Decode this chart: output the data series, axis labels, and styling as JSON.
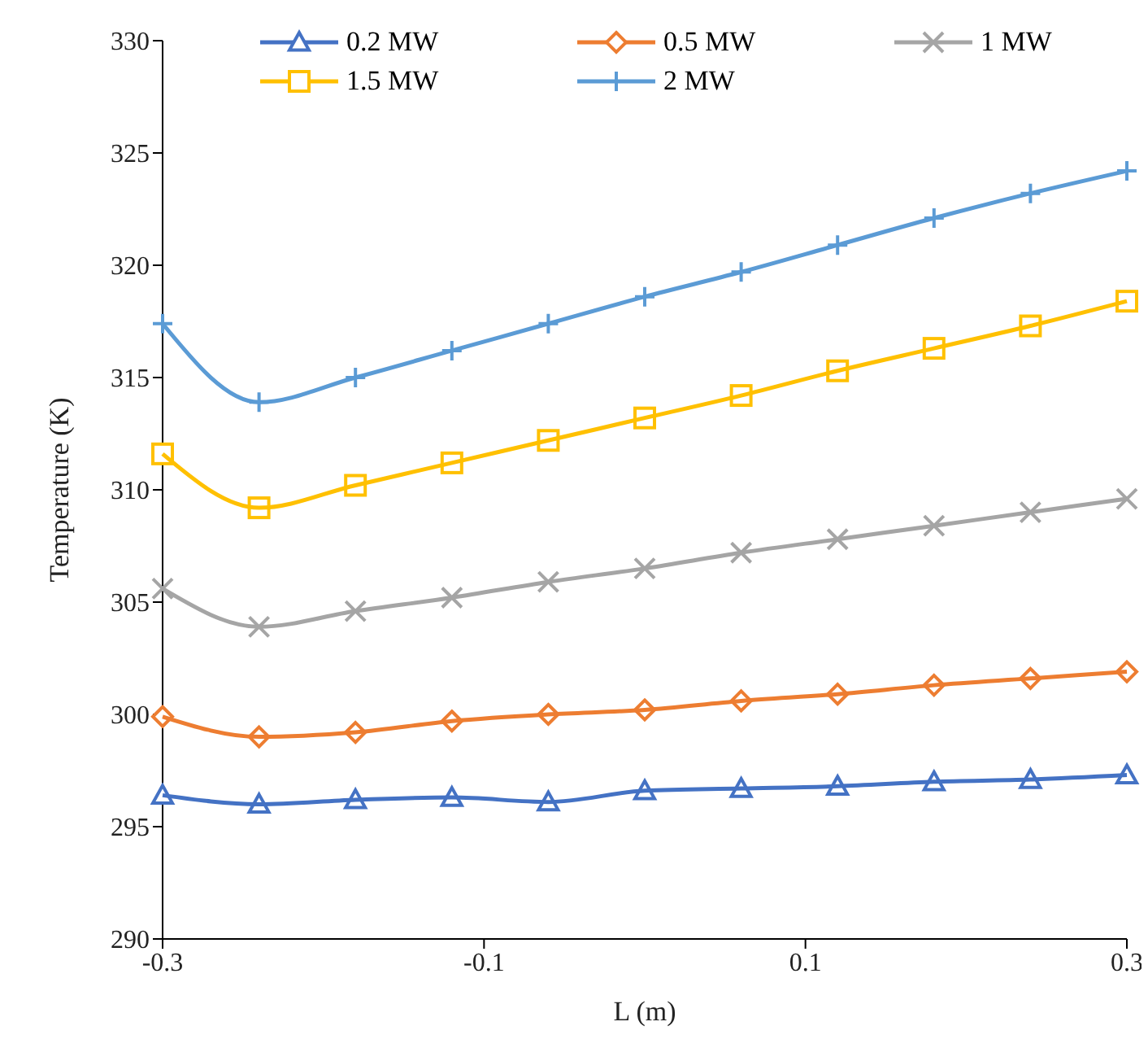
{
  "chart_data": {
    "type": "line",
    "xlabel": "L (m)",
    "ylabel": "Temperature (K)",
    "x": [
      -0.3,
      -0.24,
      -0.18,
      -0.12,
      -0.06,
      0,
      0.06,
      0.12,
      0.18,
      0.24,
      0.3
    ],
    "xlim": [
      -0.3,
      0.3
    ],
    "xticks": [
      -0.3,
      -0.1,
      0.1,
      0.3
    ],
    "ylim": [
      290,
      330
    ],
    "yticks": [
      290,
      295,
      300,
      305,
      310,
      315,
      320,
      325,
      330
    ],
    "grid": false,
    "legend": "top",
    "series": [
      {
        "name": "0.2 MW",
        "color": "#4472c4",
        "marker": "triangle",
        "values": [
          296.4,
          296.0,
          296.2,
          296.3,
          296.1,
          296.6,
          296.7,
          296.8,
          297.0,
          297.1,
          297.3
        ]
      },
      {
        "name": "0.5 MW",
        "color": "#ed7d31",
        "marker": "diamond",
        "values": [
          299.9,
          299.0,
          299.2,
          299.7,
          300.0,
          300.2,
          300.6,
          300.9,
          301.3,
          301.6,
          301.9
        ]
      },
      {
        "name": "1 MW",
        "color": "#a5a5a5",
        "marker": "cross",
        "values": [
          305.6,
          303.9,
          304.6,
          305.2,
          305.9,
          306.5,
          307.2,
          307.8,
          308.4,
          309.0,
          309.6
        ]
      },
      {
        "name": "1.5 MW",
        "color": "#ffc000",
        "marker": "square",
        "values": [
          311.6,
          309.2,
          310.2,
          311.2,
          312.2,
          313.2,
          314.2,
          315.3,
          316.3,
          317.3,
          318.4
        ]
      },
      {
        "name": "2 MW",
        "color": "#5b9bd5",
        "marker": "plus",
        "values": [
          317.4,
          313.9,
          315.0,
          316.2,
          317.4,
          318.6,
          319.7,
          320.9,
          322.1,
          323.2,
          324.2
        ]
      }
    ]
  }
}
